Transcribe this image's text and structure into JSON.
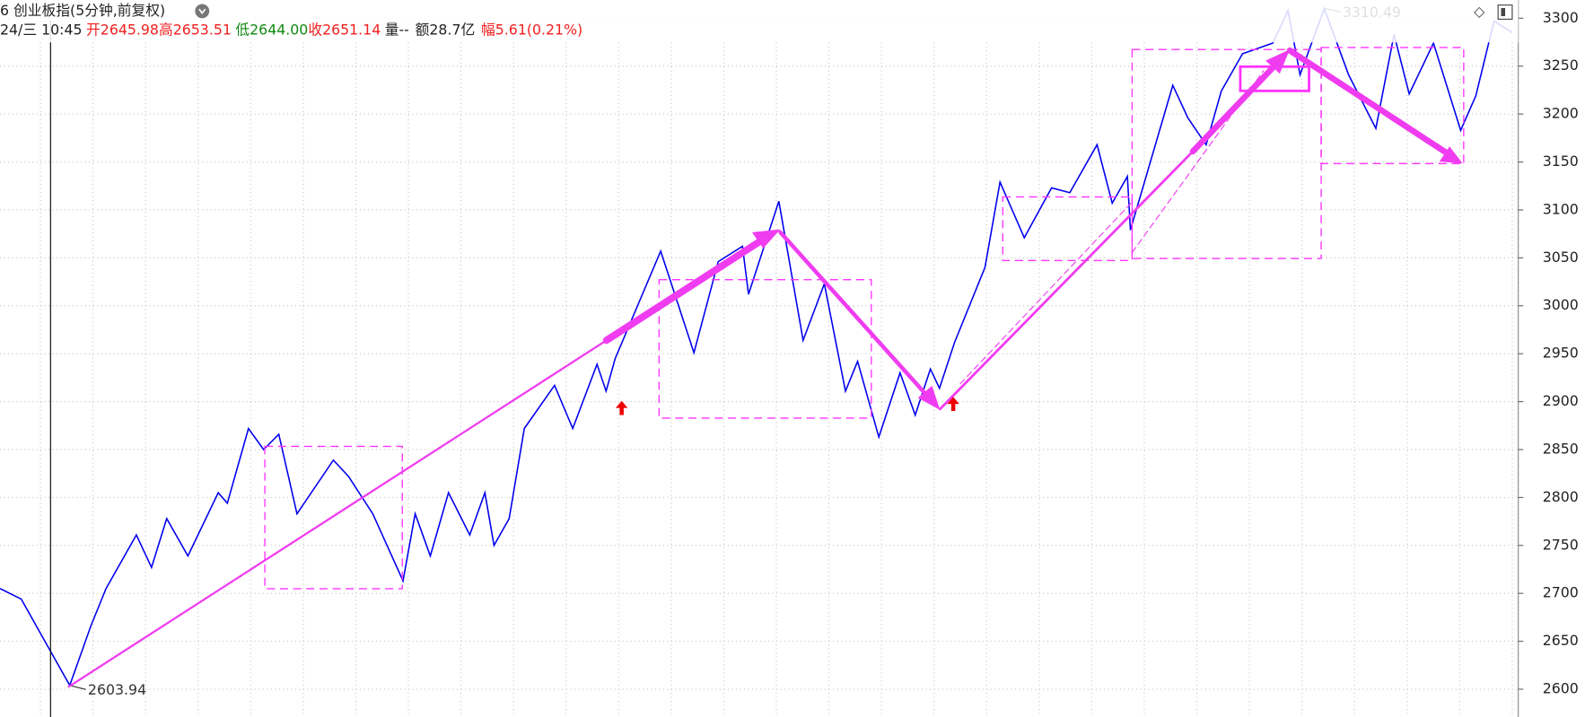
{
  "header": {
    "title": "6 创业板指(5分钟,前复权)",
    "time": "24/三 10:45",
    "open": "开2645.98",
    "high": "高2653.51",
    "low": "低2644.00",
    "close": "收2651.14",
    "volume": "量--",
    "amount": "额28.7亿",
    "change": "幅5.61(0.21%)"
  },
  "chart_data": {
    "type": "line",
    "color": "#0000ee",
    "x": [
      0,
      7,
      15,
      23,
      30,
      35,
      45,
      50,
      55,
      62,
      72,
      75,
      82,
      87,
      92,
      98,
      110,
      115,
      123,
      133,
      137,
      142,
      148,
      155,
      160,
      163,
      168,
      173,
      183,
      189,
      197,
      200,
      203,
      218,
      229,
      237,
      245,
      247,
      257,
      265,
      272,
      279,
      283,
      290,
      297,
      302,
      307,
      310,
      315,
      325,
      330,
      338,
      347,
      353,
      362,
      367,
      372,
      373,
      387,
      392,
      398,
      403,
      410,
      420,
      425,
      429,
      437,
      445,
      454,
      460,
      465,
      473,
      482,
      487,
      493,
      499
    ],
    "values": [
      2705,
      2694,
      2649,
      2604,
      2666,
      2705,
      2761,
      2727,
      2778,
      2739,
      2805,
      2794,
      2872,
      2850,
      2866,
      2783,
      2839,
      2822,
      2783,
      2713,
      2783,
      2739,
      2805,
      2761,
      2805,
      2750,
      2778,
      2872,
      2917,
      2872,
      2939,
      2911,
      2945,
      3057,
      2951,
      3046,
      3062,
      3012,
      3109,
      2964,
      3023,
      2911,
      2942,
      2863,
      2930,
      2886,
      2934,
      2914,
      2962,
      3040,
      3129,
      3071,
      3123,
      3118,
      3168,
      3107,
      3135,
      3079,
      3230,
      3196,
      3168,
      3224,
      3263,
      3274,
      3308,
      3241,
      3310,
      3241,
      3185,
      3283,
      3221,
      3274,
      3183,
      3219,
      3297,
      3285
    ],
    "xlim": [
      0,
      501
    ],
    "ylim": [
      2571,
      3319
    ],
    "yticks": [
      2600,
      2650,
      2700,
      2750,
      2800,
      2850,
      2900,
      2950,
      3000,
      3050,
      3100,
      3150,
      3200,
      3250,
      3300
    ],
    "extremes": [
      {
        "x": 437,
        "value": 3310.49
      },
      {
        "x": 23,
        "value": 2603.94
      }
    ],
    "grid": true
  }
}
